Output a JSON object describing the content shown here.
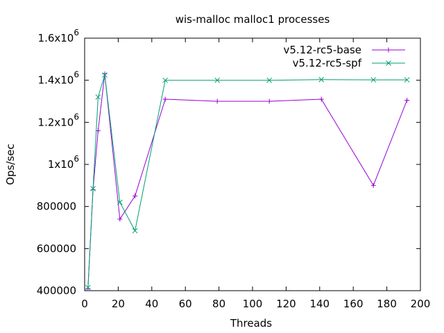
{
  "chart_data": {
    "type": "line",
    "title": "wis-malloc malloc1 processes",
    "xlabel": "Threads",
    "ylabel": "Ops/sec",
    "xlim": [
      0,
      200
    ],
    "ylim": [
      400000,
      1600000
    ],
    "grid": false,
    "legend_position": "top-right",
    "x_ticks": [
      {
        "value": 0,
        "label": "0"
      },
      {
        "value": 20,
        "label": "20"
      },
      {
        "value": 40,
        "label": "40"
      },
      {
        "value": 60,
        "label": "60"
      },
      {
        "value": 80,
        "label": "80"
      },
      {
        "value": 100,
        "label": "100"
      },
      {
        "value": 120,
        "label": "120"
      },
      {
        "value": 140,
        "label": "140"
      },
      {
        "value": 160,
        "label": "160"
      },
      {
        "value": 180,
        "label": "180"
      },
      {
        "value": 200,
        "label": "200"
      }
    ],
    "y_ticks": [
      {
        "value": 400000,
        "label": "400000"
      },
      {
        "value": 600000,
        "label": "600000"
      },
      {
        "value": 800000,
        "label": "800000"
      },
      {
        "value": 1000000,
        "label": "1x10",
        "sup": "6"
      },
      {
        "value": 1200000,
        "label": "1.2x10",
        "sup": "6"
      },
      {
        "value": 1400000,
        "label": "1.4x10",
        "sup": "6"
      },
      {
        "value": 1600000,
        "label": "1.6x10",
        "sup": "6"
      }
    ],
    "series": [
      {
        "name": "v5.12-rc5-base",
        "color": "#9400D3",
        "marker": "plus",
        "x": [
          2,
          5,
          8,
          12,
          21,
          30,
          48,
          79,
          110,
          141,
          172,
          192
        ],
        "values": [
          410000,
          880000,
          1160000,
          1430000,
          740000,
          850000,
          1310000,
          1300000,
          1300000,
          1310000,
          900000,
          1305000
        ]
      },
      {
        "name": "v5.12-rc5-spf",
        "color": "#009E73",
        "marker": "cross",
        "x": [
          2,
          5,
          8,
          12,
          21,
          30,
          48,
          79,
          110,
          141,
          172,
          192
        ],
        "values": [
          415000,
          885000,
          1320000,
          1425000,
          820000,
          685000,
          1400000,
          1400000,
          1400000,
          1403000,
          1402000,
          1402000
        ]
      }
    ]
  }
}
